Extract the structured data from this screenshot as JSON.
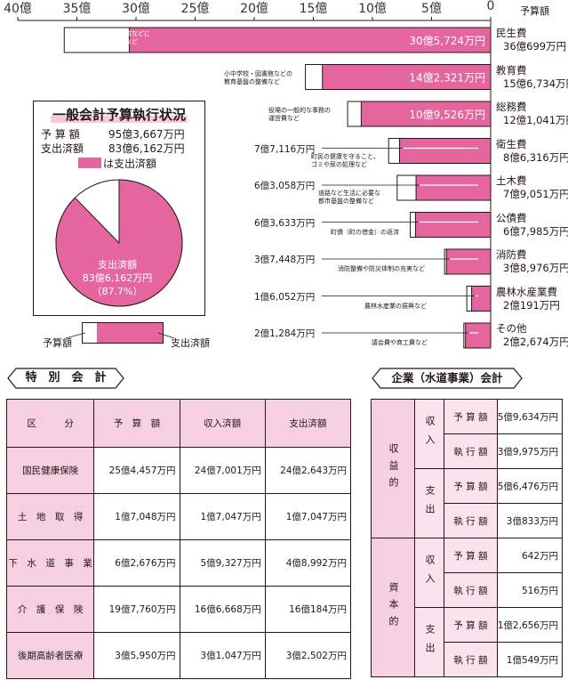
{
  "chart_data": {
    "type": "bar",
    "unit_label": "予算額",
    "axis_ticks": [
      "40億",
      "35億",
      "30億",
      "25億",
      "20億",
      "15億",
      "10億",
      "5億",
      "0"
    ],
    "xlim": [
      0,
      40
    ],
    "categories": [
      {
        "name": "民生費",
        "budget": "36億699万円",
        "budget_oku": 36.07,
        "spent": "30億5,724万円",
        "spent_oku": 30.57,
        "desc": [
          "高齢者や障害者・児童などに",
          "対する福祉サービスなど"
        ],
        "label_inside": true
      },
      {
        "name": "教育費",
        "budget": "15億6,734万円",
        "budget_oku": 15.67,
        "spent": "14億2,321万円",
        "spent_oku": 14.23,
        "desc": [
          "小中学校・図書館などの",
          "教育基盤の整備など"
        ],
        "label_inside": true
      },
      {
        "name": "総務費",
        "budget": "12億1,041万円",
        "budget_oku": 12.1,
        "spent": "10億9,526万円",
        "spent_oku": 10.95,
        "desc": [
          "役場の一般的な事務の",
          "運営費など"
        ],
        "label_inside": true
      },
      {
        "name": "衛生費",
        "budget": "8億6,316万円",
        "budget_oku": 8.63,
        "spent": "7億7,116万円",
        "spent_oku": 7.71,
        "desc": [
          "町民の健康を守ること、",
          "ゴミや尿の処理など"
        ],
        "label_inside": false
      },
      {
        "name": "土木費",
        "budget": "7億9,051万円",
        "budget_oku": 7.91,
        "spent": "6億3,058万円",
        "spent_oku": 6.31,
        "desc": [
          "道路など生活に必要な",
          "都市基盤の整備など"
        ],
        "label_inside": false
      },
      {
        "name": "公債費",
        "budget": "6億7,985万円",
        "budget_oku": 6.8,
        "spent": "6億3,633万円",
        "spent_oku": 6.36,
        "desc": [
          "町債（町の借金）の返済"
        ],
        "label_inside": false
      },
      {
        "name": "消防費",
        "budget": "3億8,976万円",
        "budget_oku": 3.9,
        "spent": "3億7,448万円",
        "spent_oku": 3.74,
        "desc": [
          "消防整備や防災体制の充実など"
        ],
        "label_inside": false
      },
      {
        "name": "農林水産業費",
        "budget": "2億191万円",
        "budget_oku": 2.02,
        "spent": "1億6,052万円",
        "spent_oku": 1.61,
        "desc": [
          "農林水産業の振興など"
        ],
        "label_inside": false
      },
      {
        "name": "その他",
        "budget": "2億2,674万円",
        "budget_oku": 2.27,
        "spent": "2億1,284万円",
        "spent_oku": 2.13,
        "desc": [
          "議会費や商工費など"
        ],
        "label_inside": false
      }
    ],
    "pie": {
      "label_lines": [
        "支出済額",
        "83億6,162万円",
        "（87.7%）"
      ],
      "value": 87.7
    }
  },
  "summary": {
    "title": "一般会計予算執行状況",
    "budget_label": "予 算 額",
    "budget_value": "95億3,667万円",
    "spent_label": "支出済額",
    "spent_value": "83億6,162万円",
    "legend_label": "は支出済額"
  },
  "legend2": {
    "budget": "予算額",
    "spent": "支出済額"
  },
  "special": {
    "title": "特　別　会　計",
    "headers": [
      "区　　　分",
      "予　算　額",
      "収入済額",
      "支出済額"
    ],
    "rows": [
      [
        "国民健康保険",
        "25億4,457万円",
        "24億7,001万円",
        "24億2,643万円"
      ],
      [
        "土　地　取　得",
        "1億7,048万円",
        "1億7,047万円",
        "1億7,047万円"
      ],
      [
        "下　水　道　事　業",
        "6億2,676万円",
        "5億9,327万円",
        "4億8,992万円"
      ],
      [
        "介　護　保　険",
        "19億7,760万円",
        "16億6,668万円",
        "16億184万円"
      ],
      [
        "後期高齢者医療",
        "3億5,950万円",
        "3億1,047万円",
        "3億2,502万円"
      ]
    ]
  },
  "water": {
    "title": "企業（水道事業）会計",
    "groups": [
      {
        "name": "収益的",
        "subs": [
          {
            "name": "収入",
            "rows": [
              [
                "予 算 額",
                "5億9,634万円"
              ],
              [
                "執 行 額",
                "3億9,975万円"
              ]
            ]
          },
          {
            "name": "支出",
            "rows": [
              [
                "予 算 額",
                "5億6,476万円"
              ],
              [
                "執 行 額",
                "3億833万円"
              ]
            ]
          }
        ]
      },
      {
        "name": "資本的",
        "subs": [
          {
            "name": "収入",
            "rows": [
              [
                "予 算 額",
                "642万円"
              ],
              [
                "執 行 額",
                "516万円"
              ]
            ]
          },
          {
            "name": "支出",
            "rows": [
              [
                "予 算 額",
                "1億2,656万円"
              ],
              [
                "執 行 額",
                "1億549万円"
              ]
            ]
          }
        ]
      }
    ]
  },
  "colors": {
    "accent": "#e5669f",
    "pale": "#f6cfe0",
    "paler": "#fbe3ed",
    "ink": "#231815"
  }
}
